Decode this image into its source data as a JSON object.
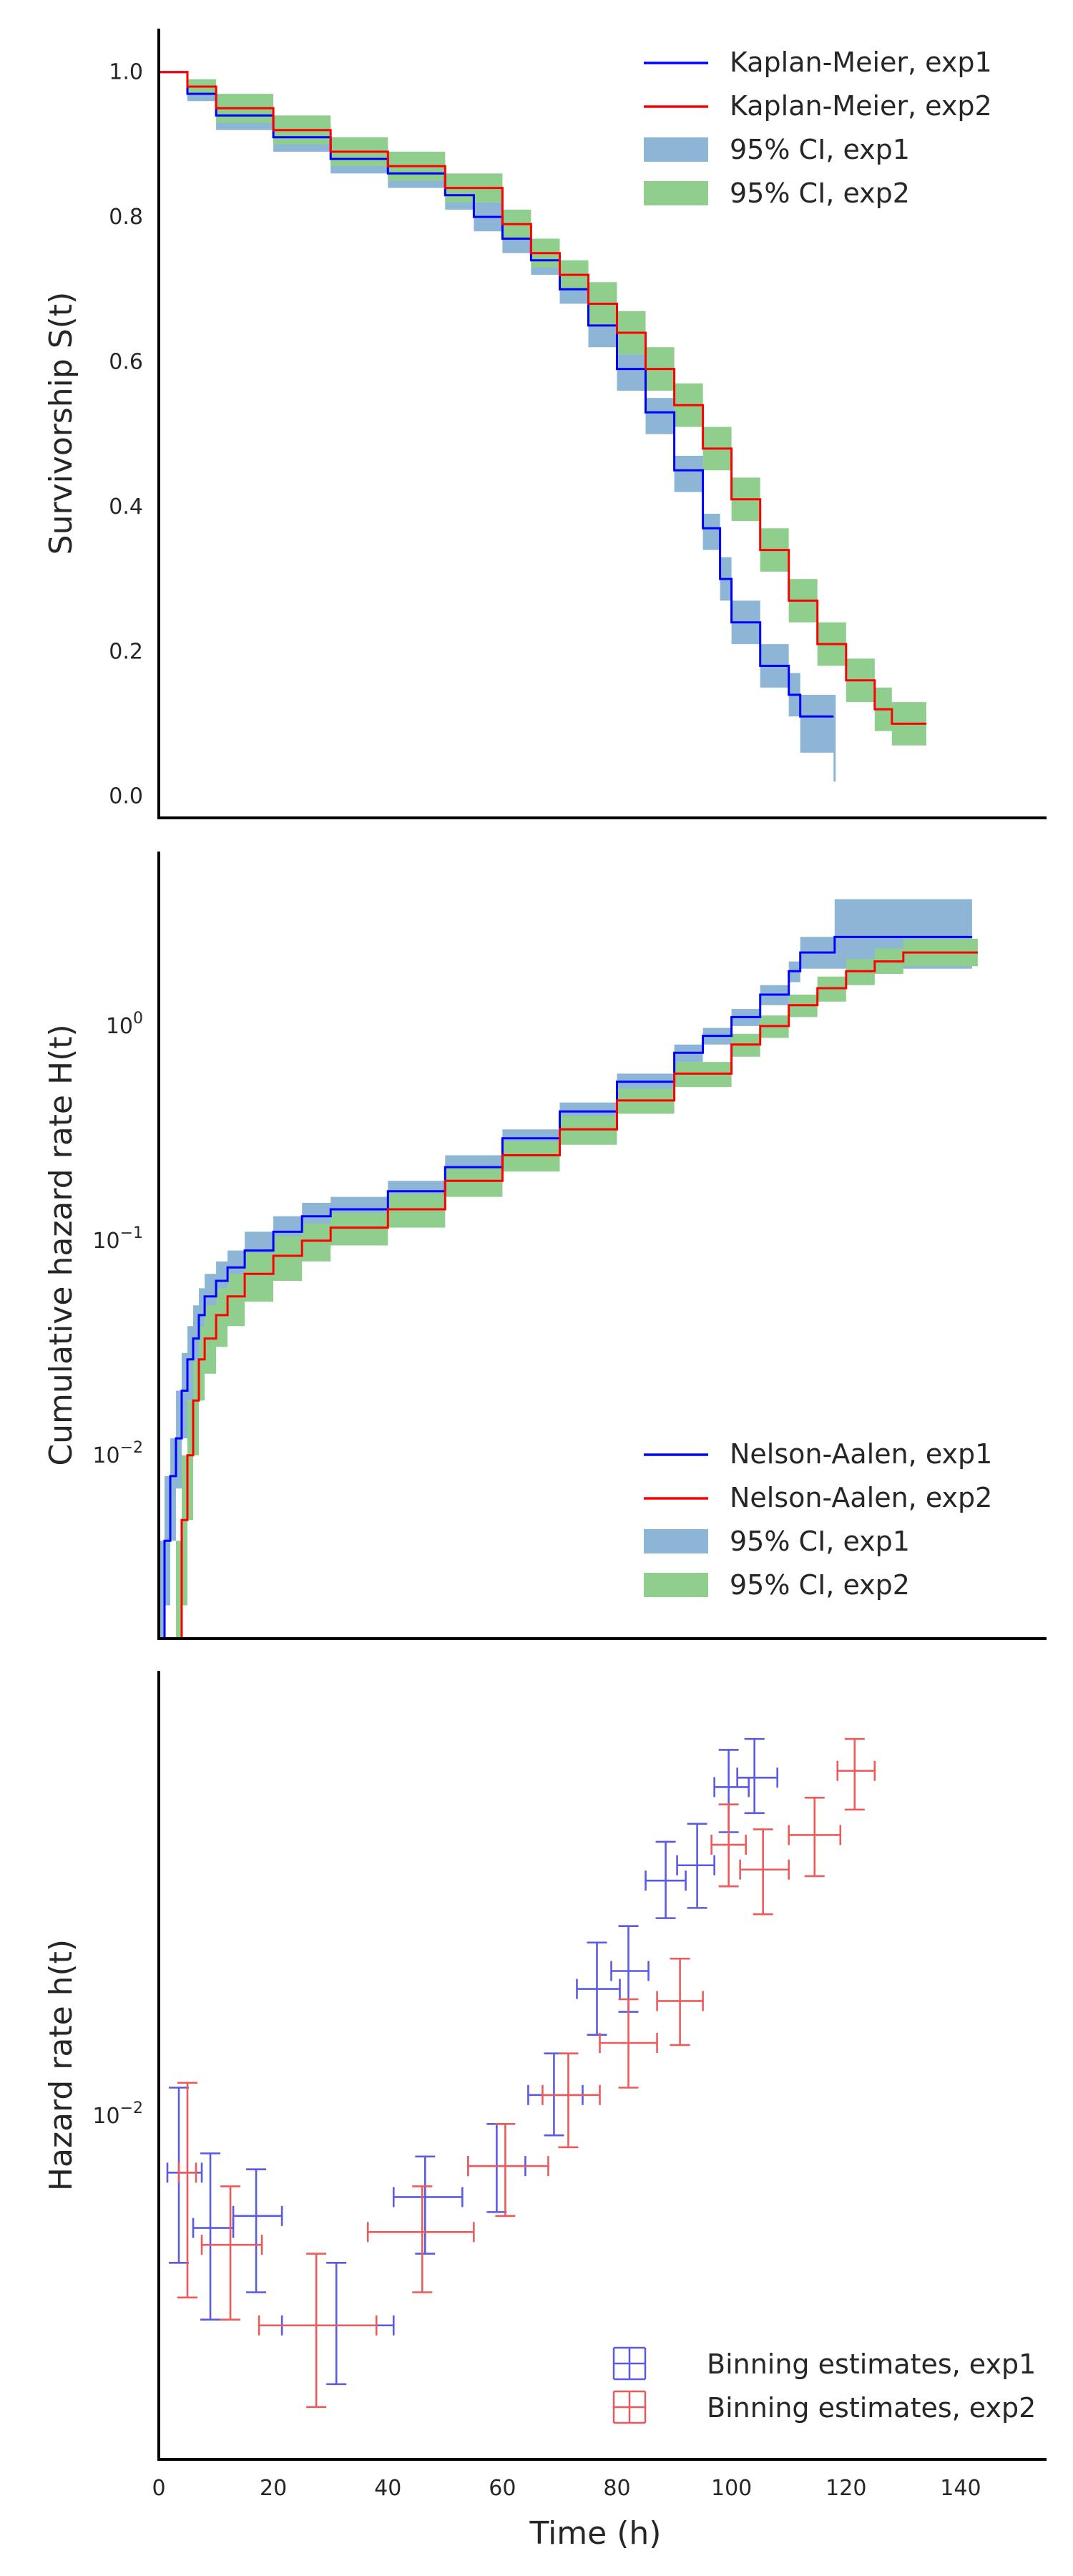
{
  "chart_data": [
    {
      "type": "line",
      "ylabel": "Survivorship S(t)",
      "xlim": [
        0,
        155
      ],
      "ylim": [
        -0.03,
        1.06
      ],
      "yticks": [
        0.0,
        0.2,
        0.4,
        0.6,
        0.8,
        1.0
      ],
      "ytick_labels": [
        "0.0",
        "0.2",
        "0.4",
        "0.6",
        "0.8",
        "1.0"
      ],
      "legend": {
        "placement": "top-right",
        "entries": [
          "Kaplan-Meier, exp1",
          "Kaplan-Meier, exp2",
          "95% CI, exp1",
          "95% CI, exp2"
        ]
      },
      "grid": false,
      "series": [
        {
          "name": "Kaplan-Meier, exp1",
          "kind": "step",
          "x": [
            0,
            5,
            10,
            20,
            30,
            40,
            50,
            55,
            60,
            65,
            70,
            75,
            80,
            85,
            90,
            95,
            98,
            100,
            105,
            110,
            112,
            118
          ],
          "y": [
            1.0,
            0.97,
            0.94,
            0.91,
            0.88,
            0.86,
            0.83,
            0.8,
            0.77,
            0.74,
            0.7,
            0.65,
            0.59,
            0.53,
            0.45,
            0.37,
            0.3,
            0.24,
            0.18,
            0.14,
            0.11,
            0.11
          ]
        },
        {
          "name": "Kaplan-Meier, exp2",
          "kind": "step",
          "x": [
            0,
            5,
            10,
            20,
            30,
            40,
            50,
            60,
            65,
            70,
            75,
            80,
            85,
            90,
            95,
            100,
            105,
            110,
            115,
            120,
            125,
            128,
            134
          ],
          "y": [
            1.0,
            0.98,
            0.95,
            0.92,
            0.89,
            0.87,
            0.84,
            0.79,
            0.75,
            0.72,
            0.68,
            0.64,
            0.59,
            0.54,
            0.48,
            0.41,
            0.34,
            0.27,
            0.21,
            0.16,
            0.12,
            0.1,
            0.1
          ]
        }
      ],
      "bands": [
        {
          "name": "95% CI, exp1",
          "x": [
            0,
            5,
            10,
            20,
            30,
            40,
            50,
            55,
            60,
            65,
            70,
            75,
            80,
            85,
            90,
            95,
            98,
            100,
            105,
            110,
            112,
            118
          ],
          "upper": [
            1.0,
            0.98,
            0.96,
            0.93,
            0.9,
            0.88,
            0.85,
            0.82,
            0.79,
            0.76,
            0.72,
            0.67,
            0.61,
            0.55,
            0.47,
            0.39,
            0.33,
            0.27,
            0.21,
            0.17,
            0.14,
            0.14
          ],
          "lower": [
            1.0,
            0.96,
            0.92,
            0.89,
            0.86,
            0.84,
            0.81,
            0.78,
            0.75,
            0.72,
            0.68,
            0.62,
            0.56,
            0.5,
            0.42,
            0.34,
            0.27,
            0.21,
            0.15,
            0.11,
            0.06,
            0.06
          ]
        },
        {
          "name": "95% CI, exp2",
          "x": [
            0,
            5,
            10,
            20,
            30,
            40,
            50,
            60,
            65,
            70,
            75,
            80,
            85,
            90,
            95,
            100,
            105,
            110,
            115,
            120,
            125,
            128,
            134
          ],
          "upper": [
            1.0,
            0.99,
            0.97,
            0.94,
            0.91,
            0.89,
            0.86,
            0.81,
            0.77,
            0.74,
            0.71,
            0.67,
            0.62,
            0.57,
            0.51,
            0.44,
            0.37,
            0.3,
            0.24,
            0.19,
            0.15,
            0.13,
            0.13
          ],
          "lower": [
            1.0,
            0.97,
            0.93,
            0.9,
            0.87,
            0.85,
            0.82,
            0.77,
            0.73,
            0.7,
            0.65,
            0.61,
            0.56,
            0.51,
            0.45,
            0.38,
            0.31,
            0.24,
            0.18,
            0.13,
            0.09,
            0.07,
            0.07
          ]
        }
      ],
      "vertical_segment": {
        "series": "exp1",
        "x": 118,
        "y_from": 0.02,
        "y_to": 0.14
      }
    },
    {
      "type": "line",
      "ylabel": "Cumulative hazard rate H(t)",
      "yscale": "log",
      "xlim": [
        0,
        155
      ],
      "ylim": [
        0.0014,
        6.5
      ],
      "yticks": [
        0.01,
        0.1,
        1
      ],
      "ytick_labels": [
        "10",
        "10",
        "10"
      ],
      "ytick_exponents": [
        "−2",
        "−1",
        "0"
      ],
      "legend": {
        "placement": "bottom-right",
        "entries": [
          "Nelson-Aalen, exp1",
          "Nelson-Aalen, exp2",
          "95% CI, exp1",
          "95% CI, exp2"
        ]
      },
      "grid": false,
      "series": [
        {
          "name": "Nelson-Aalen, exp1",
          "kind": "step",
          "x": [
            0,
            1,
            2,
            3,
            4,
            5,
            6,
            7,
            8,
            10,
            12,
            15,
            20,
            25,
            30,
            40,
            50,
            60,
            70,
            80,
            90,
            95,
            100,
            105,
            110,
            112,
            118,
            142
          ],
          "y": [
            0.0014,
            0.004,
            0.008,
            0.012,
            0.02,
            0.028,
            0.035,
            0.045,
            0.055,
            0.065,
            0.075,
            0.09,
            0.11,
            0.13,
            0.14,
            0.17,
            0.22,
            0.3,
            0.4,
            0.55,
            0.75,
            0.9,
            1.1,
            1.4,
            1.8,
            2.2,
            2.6,
            2.6
          ]
        },
        {
          "name": "Nelson-Aalen, exp2",
          "kind": "step",
          "x": [
            0,
            3,
            4,
            5,
            6,
            7,
            8,
            10,
            12,
            15,
            20,
            25,
            30,
            40,
            50,
            60,
            70,
            80,
            90,
            100,
            105,
            110,
            115,
            120,
            125,
            130,
            143
          ],
          "y": [
            0.0014,
            0.0014,
            0.005,
            0.01,
            0.018,
            0.028,
            0.035,
            0.045,
            0.055,
            0.07,
            0.085,
            0.1,
            0.115,
            0.14,
            0.19,
            0.25,
            0.33,
            0.45,
            0.6,
            0.82,
            1.0,
            1.25,
            1.5,
            1.8,
            2.0,
            2.2,
            2.2
          ]
        }
      ],
      "bands": [
        {
          "name": "95% CI, exp1",
          "x": [
            0,
            1,
            2,
            3,
            4,
            5,
            6,
            7,
            8,
            10,
            12,
            15,
            20,
            25,
            30,
            40,
            50,
            60,
            70,
            80,
            90,
            95,
            100,
            105,
            110,
            112,
            118,
            142
          ],
          "upper": [
            0.004,
            0.008,
            0.012,
            0.02,
            0.03,
            0.04,
            0.05,
            0.06,
            0.07,
            0.08,
            0.09,
            0.11,
            0.13,
            0.15,
            0.16,
            0.19,
            0.25,
            0.33,
            0.44,
            0.6,
            0.82,
            0.98,
            1.2,
            1.55,
            2.0,
            2.6,
            3.9,
            3.9
          ],
          "lower": [
            0.0008,
            0.002,
            0.004,
            0.007,
            0.012,
            0.018,
            0.024,
            0.032,
            0.042,
            0.052,
            0.062,
            0.075,
            0.092,
            0.11,
            0.12,
            0.15,
            0.19,
            0.27,
            0.36,
            0.5,
            0.68,
            0.82,
            1.0,
            1.25,
            1.6,
            1.85,
            1.85,
            1.85
          ]
        },
        {
          "name": "95% CI, exp2",
          "x": [
            0,
            3,
            4,
            5,
            6,
            7,
            8,
            10,
            12,
            15,
            20,
            25,
            30,
            40,
            50,
            60,
            70,
            80,
            90,
            100,
            105,
            110,
            115,
            120,
            125,
            130,
            143
          ],
          "upper": [
            0.0014,
            0.004,
            0.01,
            0.018,
            0.028,
            0.04,
            0.05,
            0.06,
            0.07,
            0.088,
            0.105,
            0.12,
            0.135,
            0.165,
            0.22,
            0.29,
            0.38,
            0.51,
            0.68,
            0.92,
            1.12,
            1.4,
            1.7,
            2.05,
            2.3,
            2.55,
            2.55
          ],
          "lower": [
            0.0008,
            0.0008,
            0.002,
            0.005,
            0.01,
            0.018,
            0.024,
            0.032,
            0.04,
            0.052,
            0.065,
            0.08,
            0.095,
            0.115,
            0.16,
            0.21,
            0.28,
            0.39,
            0.52,
            0.72,
            0.88,
            1.1,
            1.3,
            1.55,
            1.75,
            1.9,
            1.9
          ]
        }
      ]
    },
    {
      "type": "scatter",
      "ylabel": "Hazard rate h(t)",
      "xlabel": "Time (h)",
      "yscale": "log",
      "xlim": [
        0,
        155
      ],
      "ylim": [
        0.0028,
        0.052
      ],
      "xticks": [
        0,
        20,
        40,
        60,
        80,
        100,
        120,
        140
      ],
      "xtick_labels": [
        "0",
        "20",
        "40",
        "60",
        "80",
        "100",
        "120",
        "140"
      ],
      "yticks": [
        0.01
      ],
      "ytick_labels": [
        "10"
      ],
      "ytick_exponents": [
        "−2"
      ],
      "legend": {
        "placement": "bottom-right",
        "entries": [
          "Binning estimates, exp1",
          "Binning estimates, exp2"
        ]
      },
      "grid": false,
      "series": [
        {
          "name": "Binning estimates, exp1",
          "points": [
            {
              "x": 3.5,
              "y": 0.0081,
              "xlo": 1.5,
              "xhi": 7.5,
              "ylo": 0.0058,
              "yhi": 0.0111
            },
            {
              "x": 9,
              "y": 0.0066,
              "xlo": 6,
              "xhi": 13,
              "ylo": 0.0047,
              "yhi": 0.0087
            },
            {
              "x": 17,
              "y": 0.0069,
              "xlo": 13,
              "xhi": 21.5,
              "ylo": 0.0052,
              "yhi": 0.0082
            },
            {
              "x": 31,
              "y": 0.0046,
              "xlo": 21.5,
              "xhi": 41,
              "ylo": 0.0037,
              "yhi": 0.0058
            },
            {
              "x": 46.5,
              "y": 0.0074,
              "xlo": 41,
              "xhi": 53,
              "ylo": 0.006,
              "yhi": 0.0086
            },
            {
              "x": 59,
              "y": 0.0083,
              "xlo": 54,
              "xhi": 64,
              "ylo": 0.007,
              "yhi": 0.0097
            },
            {
              "x": 69,
              "y": 0.0108,
              "xlo": 64.5,
              "xhi": 74,
              "ylo": 0.0093,
              "yhi": 0.0126
            },
            {
              "x": 76.5,
              "y": 0.016,
              "xlo": 73,
              "xhi": 80.5,
              "ylo": 0.0135,
              "yhi": 0.019
            },
            {
              "x": 82,
              "y": 0.0171,
              "xlo": 79,
              "xhi": 85.5,
              "ylo": 0.0147,
              "yhi": 0.0202
            },
            {
              "x": 88.5,
              "y": 0.0239,
              "xlo": 85,
              "xhi": 92,
              "ylo": 0.0208,
              "yhi": 0.0276
            },
            {
              "x": 94,
              "y": 0.0253,
              "xlo": 90.5,
              "xhi": 97,
              "ylo": 0.0216,
              "yhi": 0.0295
            },
            {
              "x": 99.5,
              "y": 0.0338,
              "xlo": 97,
              "xhi": 103,
              "ylo": 0.0286,
              "yhi": 0.0388
            },
            {
              "x": 104,
              "y": 0.035,
              "xlo": 101,
              "xhi": 108,
              "ylo": 0.0307,
              "yhi": 0.0404
            }
          ]
        },
        {
          "name": "Binning estimates, exp2",
          "points": [
            {
              "x": 5,
              "y": 0.0081,
              "xlo": 3.5,
              "xhi": 6.5,
              "ylo": 0.0051,
              "yhi": 0.0113
            },
            {
              "x": 12.5,
              "y": 0.0062,
              "xlo": 7.5,
              "xhi": 18,
              "ylo": 0.0047,
              "yhi": 0.0077
            },
            {
              "x": 27.5,
              "y": 0.0046,
              "xlo": 17.5,
              "xhi": 38,
              "ylo": 0.0034,
              "yhi": 0.006
            },
            {
              "x": 46,
              "y": 0.0065,
              "xlo": 36.5,
              "xhi": 55,
              "ylo": 0.0052,
              "yhi": 0.0077
            },
            {
              "x": 60.5,
              "y": 0.0083,
              "xlo": 54,
              "xhi": 68,
              "ylo": 0.0069,
              "yhi": 0.0097
            },
            {
              "x": 71.5,
              "y": 0.0108,
              "xlo": 67,
              "xhi": 77,
              "ylo": 0.0089,
              "yhi": 0.0126
            },
            {
              "x": 82,
              "y": 0.0131,
              "xlo": 77,
              "xhi": 87,
              "ylo": 0.0111,
              "yhi": 0.0154
            },
            {
              "x": 91,
              "y": 0.0153,
              "xlo": 87,
              "xhi": 95,
              "ylo": 0.013,
              "yhi": 0.0179
            },
            {
              "x": 99.5,
              "y": 0.0273,
              "xlo": 96.5,
              "xhi": 102.5,
              "ylo": 0.0234,
              "yhi": 0.0317
            },
            {
              "x": 105.5,
              "y": 0.0249,
              "xlo": 101.5,
              "xhi": 110,
              "ylo": 0.0211,
              "yhi": 0.0289
            },
            {
              "x": 114.5,
              "y": 0.0283,
              "xlo": 110,
              "xhi": 119,
              "ylo": 0.0243,
              "yhi": 0.0325
            },
            {
              "x": 121.5,
              "y": 0.0359,
              "xlo": 118.5,
              "xhi": 125,
              "ylo": 0.0311,
              "yhi": 0.0404
            }
          ]
        }
      ]
    }
  ],
  "colors": {
    "line_exp1": "#0000ff",
    "line_exp2": "#ff0000",
    "ci_exp1": "#8db6d6",
    "ci_exp2": "#8fce8c",
    "err_exp1": "#5a5ae6",
    "err_exp2": "#ee5a5a",
    "spine": "#000000",
    "text": "#262626"
  }
}
